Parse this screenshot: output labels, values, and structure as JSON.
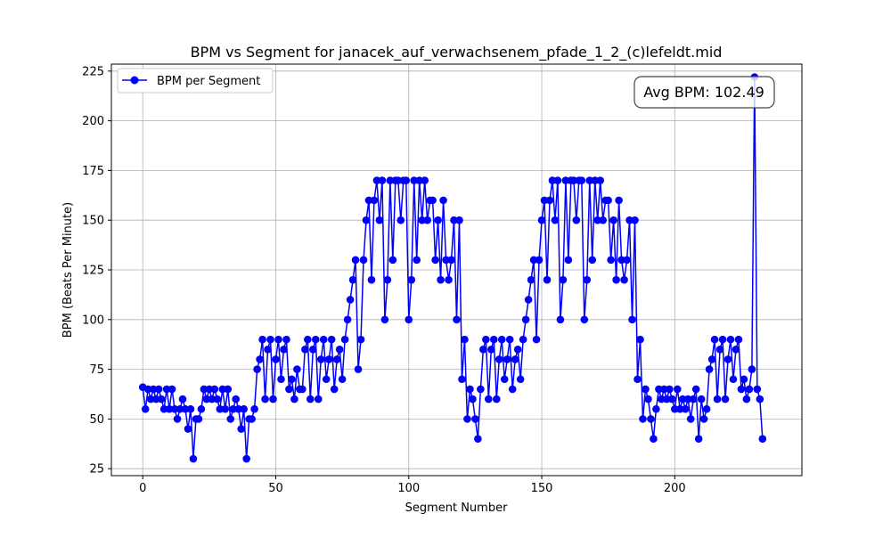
{
  "chart_data": {
    "type": "line",
    "title": "BPM vs Segment for janacek_auf_verwachsenem_pfade_1_2_(c)lefeldt.mid",
    "xlabel": "Segment Number",
    "ylabel": "BPM (Beats Per Minute)",
    "xlim": [
      -11.8,
      247.8
    ],
    "ylim": [
      21.5,
      228.5
    ],
    "xticks": [
      0,
      50,
      100,
      150,
      200
    ],
    "yticks": [
      25,
      50,
      75,
      100,
      125,
      150,
      175,
      200,
      225
    ],
    "grid": true,
    "legend_position": "top-left",
    "annotation": "Avg BPM: 102.49",
    "series": [
      {
        "name": "BPM per Segment",
        "color": "#0000ff",
        "x_start": 0,
        "x_step": 1,
        "values": [
          66,
          55,
          65,
          60,
          65,
          60,
          65,
          60,
          55,
          65,
          55,
          65,
          55,
          50,
          55,
          60,
          55,
          45,
          55,
          30,
          50,
          50,
          55,
          65,
          60,
          65,
          60,
          65,
          60,
          55,
          65,
          55,
          65,
          50,
          55,
          60,
          55,
          45,
          55,
          30,
          50,
          50,
          55,
          75,
          80,
          90,
          60,
          85,
          90,
          60,
          80,
          90,
          70,
          85,
          90,
          65,
          70,
          60,
          75,
          65,
          65,
          85,
          90,
          60,
          85,
          90,
          60,
          80,
          90,
          70,
          80,
          90,
          65,
          80,
          85,
          70,
          90,
          100,
          110,
          120,
          130,
          75,
          90,
          130,
          150,
          160,
          120,
          160,
          170,
          150,
          170,
          100,
          120,
          170,
          130,
          170,
          170,
          150,
          170,
          170,
          100,
          120,
          170,
          130,
          170,
          150,
          170,
          150,
          160,
          160,
          130,
          150,
          120,
          160,
          130,
          120,
          130,
          150,
          100,
          150,
          70,
          90,
          50,
          65,
          60,
          50,
          40,
          65,
          85,
          90,
          60,
          85,
          90,
          60,
          80,
          90,
          70,
          80,
          90,
          65,
          80,
          85,
          70,
          90,
          100,
          110,
          120,
          130,
          90,
          130,
          150,
          160,
          120,
          160,
          170,
          150,
          170,
          100,
          120,
          170,
          130,
          170,
          170,
          150,
          170,
          170,
          100,
          120,
          170,
          130,
          170,
          150,
          170,
          150,
          160,
          160,
          130,
          150,
          120,
          160,
          130,
          120,
          130,
          150,
          100,
          150,
          70,
          90,
          50,
          65,
          60,
          50,
          40,
          55,
          65,
          60,
          65,
          60,
          65,
          60,
          55,
          65,
          55,
          60,
          55,
          60,
          50,
          60,
          65,
          40,
          60,
          50,
          55,
          75,
          80,
          90,
          60,
          85,
          90,
          60,
          80,
          90,
          70,
          85,
          90,
          65,
          70,
          60,
          65,
          75,
          222,
          65,
          60,
          40
        ]
      }
    ]
  }
}
